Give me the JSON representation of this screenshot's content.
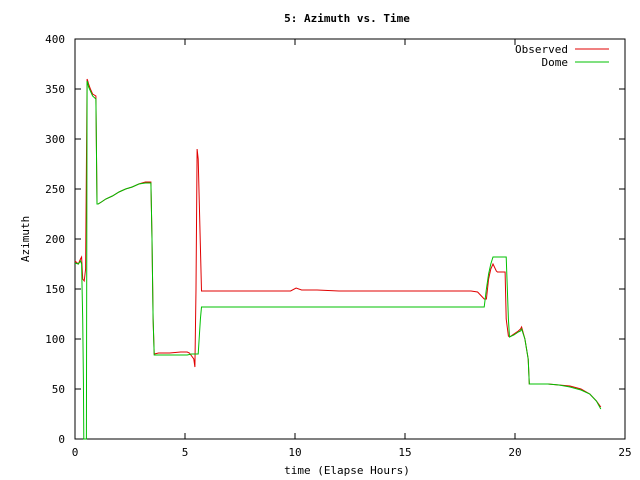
{
  "chart_data": {
    "type": "line",
    "title": "5: Azimuth vs. Time",
    "xlabel": "time (Elapse Hours)",
    "ylabel": "Azimuth",
    "xlim": [
      0,
      25
    ],
    "ylim": [
      0,
      400
    ],
    "xticks": [
      0,
      5,
      10,
      15,
      20,
      25
    ],
    "yticks": [
      0,
      50,
      100,
      150,
      200,
      250,
      300,
      350,
      400
    ],
    "grid": false,
    "legend_position": "top-right",
    "series": [
      {
        "name": "Observed",
        "color": "#e00000",
        "x": [
          0,
          0.15,
          0.25,
          0.3,
          0.35,
          0.42,
          0.48,
          0.55,
          0.58,
          0.62,
          0.7,
          0.8,
          0.95,
          1.0,
          1.05,
          1.2,
          1.4,
          1.7,
          2.0,
          2.3,
          2.6,
          2.9,
          3.2,
          3.45,
          3.5,
          3.55,
          3.6,
          3.8,
          4.3,
          4.8,
          5.1,
          5.2,
          5.4,
          5.45,
          5.5,
          5.55,
          5.6,
          5.75,
          6.0,
          8.0,
          9.8,
          10.05,
          10.3,
          11.0,
          12.0,
          14.0,
          16.0,
          18.0,
          18.3,
          18.6,
          18.7,
          18.8,
          18.9,
          19.0,
          19.15,
          19.2,
          19.3,
          19.55,
          19.6,
          19.7,
          19.75,
          19.95,
          20.15,
          20.25,
          20.3,
          20.45,
          20.6,
          20.65,
          21.0,
          21.5,
          22.0,
          22.5,
          23.0,
          23.4,
          23.7,
          23.9
        ],
        "y": [
          178,
          175,
          180,
          182,
          160,
          158,
          170,
          360,
          358,
          355,
          350,
          345,
          343,
          235,
          235,
          237,
          240,
          243,
          247,
          250,
          252,
          255,
          257,
          257,
          200,
          120,
          85,
          86,
          86,
          87,
          87,
          86,
          80,
          72,
          150,
          290,
          280,
          148,
          148,
          148,
          148,
          151,
          149,
          149,
          148,
          148,
          148,
          148,
          147,
          140,
          140,
          160,
          170,
          175,
          168,
          167,
          167,
          167,
          120,
          103,
          102,
          105,
          108,
          110,
          112,
          100,
          80,
          55,
          55,
          55,
          54,
          53,
          50,
          45,
          38,
          32
        ]
      },
      {
        "name": "Dome",
        "color": "#00c000",
        "x": [
          0,
          0.15,
          0.25,
          0.3,
          0.35,
          0.38,
          0.4,
          0.45,
          0.5,
          0.52,
          0.55,
          0.58,
          0.62,
          0.7,
          0.8,
          0.95,
          1.0,
          1.05,
          1.2,
          1.4,
          1.7,
          2.0,
          2.3,
          2.6,
          2.9,
          3.2,
          3.45,
          3.5,
          3.55,
          3.6,
          3.8,
          4.3,
          4.8,
          5.1,
          5.3,
          5.6,
          5.7,
          5.75,
          6.0,
          8.0,
          10.0,
          12.0,
          14.0,
          16.0,
          18.0,
          18.6,
          18.7,
          18.8,
          18.9,
          19.0,
          19.1,
          19.15,
          19.6,
          19.7,
          19.75,
          19.95,
          20.15,
          20.25,
          20.3,
          20.45,
          20.6,
          20.65,
          21.0,
          21.5,
          22.0,
          22.5,
          23.0,
          23.4,
          23.7,
          23.9
        ],
        "y": [
          176,
          175,
          178,
          175,
          120,
          60,
          0,
          0,
          0,
          0,
          358,
          356,
          352,
          348,
          343,
          340,
          235,
          235,
          237,
          240,
          243,
          247,
          250,
          252,
          255,
          256,
          256,
          200,
          120,
          84,
          84,
          84,
          84,
          84,
          85,
          85,
          120,
          132,
          132,
          132,
          132,
          132,
          132,
          132,
          132,
          132,
          150,
          165,
          175,
          182,
          182,
          182,
          182,
          120,
          102,
          104,
          107,
          108,
          110,
          100,
          80,
          55,
          55,
          55,
          54,
          52,
          49,
          45,
          38,
          30
        ]
      }
    ]
  }
}
